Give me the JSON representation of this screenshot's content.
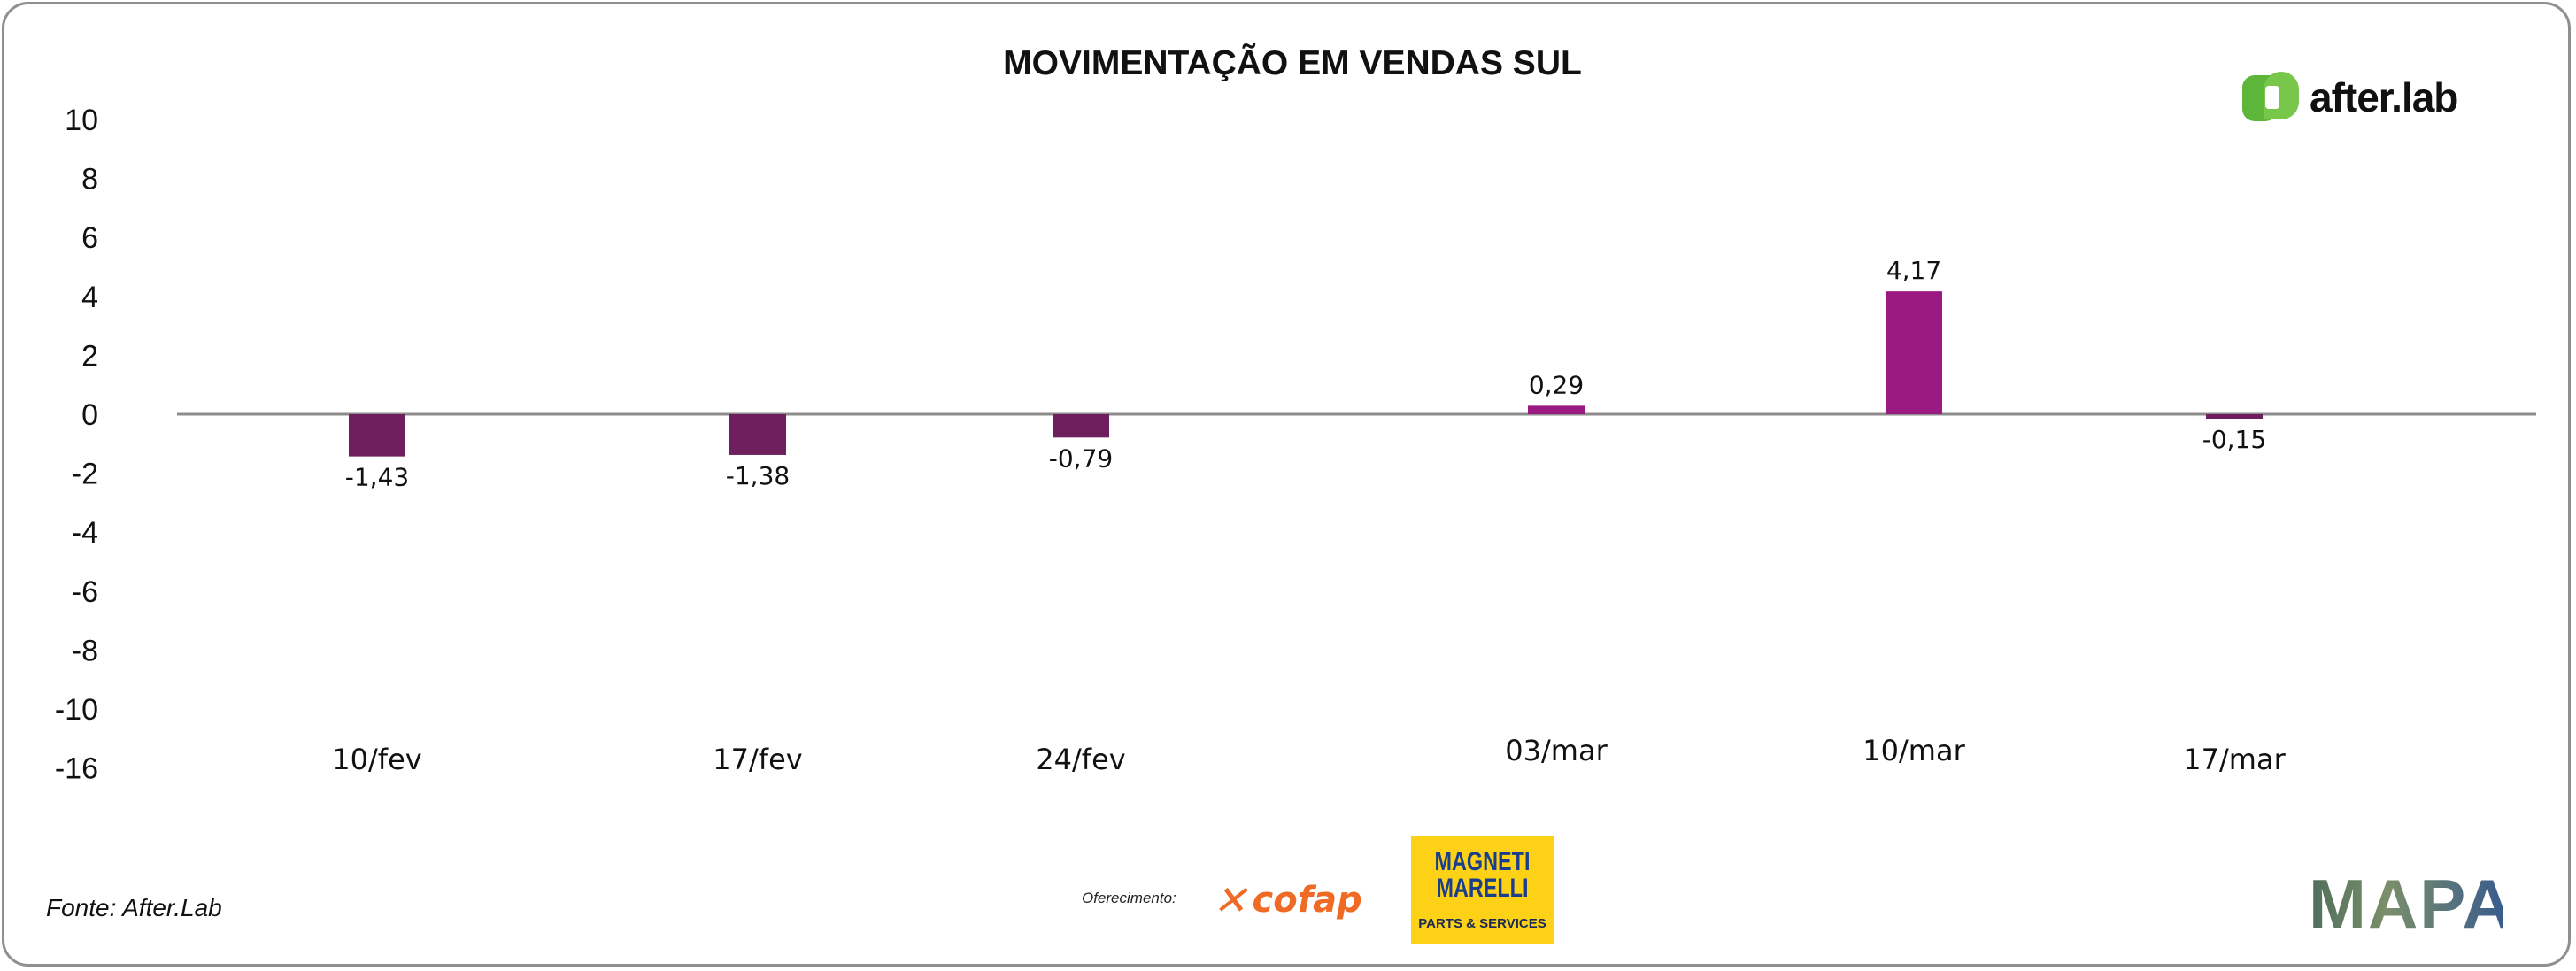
{
  "chart_data": {
    "type": "bar",
    "title": "MOVIMENTAÇÃO EM VENDAS SUL",
    "categories": [
      "10/fev",
      "17/fev",
      "24/fev",
      "03/mar",
      "10/mar",
      "17/mar"
    ],
    "values": [
      -1.43,
      -1.38,
      -0.79,
      0.29,
      4.17,
      -0.15
    ],
    "data_labels": [
      "-1,43",
      "-1,38",
      "-0,79",
      "0,29",
      "4,17",
      "-0,15"
    ],
    "y_ticks": [
      10,
      8,
      6,
      4,
      2,
      0,
      -2,
      -4,
      -6,
      -8,
      -10,
      -16
    ],
    "y_tick_labels": [
      "10",
      "8",
      "6",
      "4",
      "2",
      "0",
      "-2",
      "-4",
      "-6",
      "-8",
      "-10",
      "-16"
    ],
    "xlabel": "",
    "ylabel": "",
    "grid": false,
    "colors": {
      "negative": "#6e1f5e",
      "positive": "#9b1a82",
      "axis": "#8c8c8c"
    }
  },
  "brand": {
    "logo_text": "after.lab",
    "logo_color": "#5db639"
  },
  "footer": {
    "source": "Fonte: After.Lab",
    "offer_label": "Oferecimento:",
    "sponsor1": "cofap",
    "sponsor2_name_line1": "MAGNETI",
    "sponsor2_name_line2": "MARELLI",
    "sponsor2_sub": "PARTS & SERVICES",
    "partner": "MAPA"
  }
}
